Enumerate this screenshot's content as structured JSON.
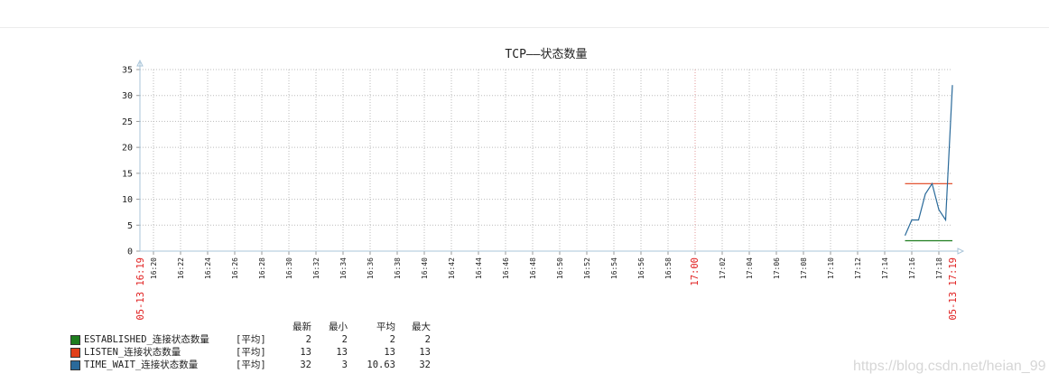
{
  "chart_data": {
    "type": "line",
    "title": "TCP——状态数量",
    "ylim": [
      0,
      35
    ],
    "y_ticks": [
      0,
      5,
      10,
      15,
      20,
      25,
      30,
      35
    ],
    "x_tick_labels": [
      "16:20",
      "16:22",
      "16:24",
      "16:26",
      "16:28",
      "16:30",
      "16:32",
      "16:34",
      "16:36",
      "16:38",
      "16:40",
      "16:42",
      "16:44",
      "16:46",
      "16:48",
      "16:50",
      "16:52",
      "16:54",
      "16:56",
      "16:58",
      "17:00",
      "17:02",
      "17:04",
      "17:06",
      "17:08",
      "17:10",
      "17:12",
      "17:14",
      "17:16",
      "17:18"
    ],
    "x_start_label": "05-13 16:19",
    "x_end_label": "05-13 17:19",
    "highlight_tick": "17:00",
    "highlight_color": "#e02020",
    "grid": true,
    "series": [
      {
        "name": "ESTABLISHED_连接状态数量",
        "color": "#1e7d1e",
        "x": [
          "17:15:30",
          "17:19:00"
        ],
        "values": [
          2,
          2
        ]
      },
      {
        "name": "LISTEN_连接状态数量",
        "color": "#e0401a",
        "x": [
          "17:15:30",
          "17:19:00"
        ],
        "values": [
          13,
          13
        ]
      },
      {
        "name": "TIME_WAIT_连接状态数量",
        "color": "#2a6a9a",
        "x": [
          "17:15:30",
          "17:16:00",
          "17:16:30",
          "17:17:00",
          "17:17:30",
          "17:18:00",
          "17:18:30",
          "17:19:00"
        ],
        "values": [
          3,
          6,
          6,
          11,
          13,
          8,
          6,
          32
        ]
      }
    ]
  },
  "legend": {
    "headers": [
      "最新",
      "最小",
      "平均",
      "最大"
    ],
    "rows": [
      {
        "swatch_color": "#1e7d1e",
        "name": "ESTABLISHED_连接状态数量",
        "agg": "[平均]",
        "last": "2",
        "min": "2",
        "avg": "2",
        "max": "2"
      },
      {
        "swatch_color": "#e0401a",
        "name": "LISTEN_连接状态数量",
        "agg": "[平均]",
        "last": "13",
        "min": "13",
        "avg": "13",
        "max": "13"
      },
      {
        "swatch_color": "#2a6a9a",
        "name": "TIME_WAIT_连接状态数量",
        "agg": "[平均]",
        "last": "32",
        "min": "3",
        "avg": "10.63",
        "max": "32"
      }
    ]
  },
  "watermark": "https://blog.csdn.net/heian_99"
}
